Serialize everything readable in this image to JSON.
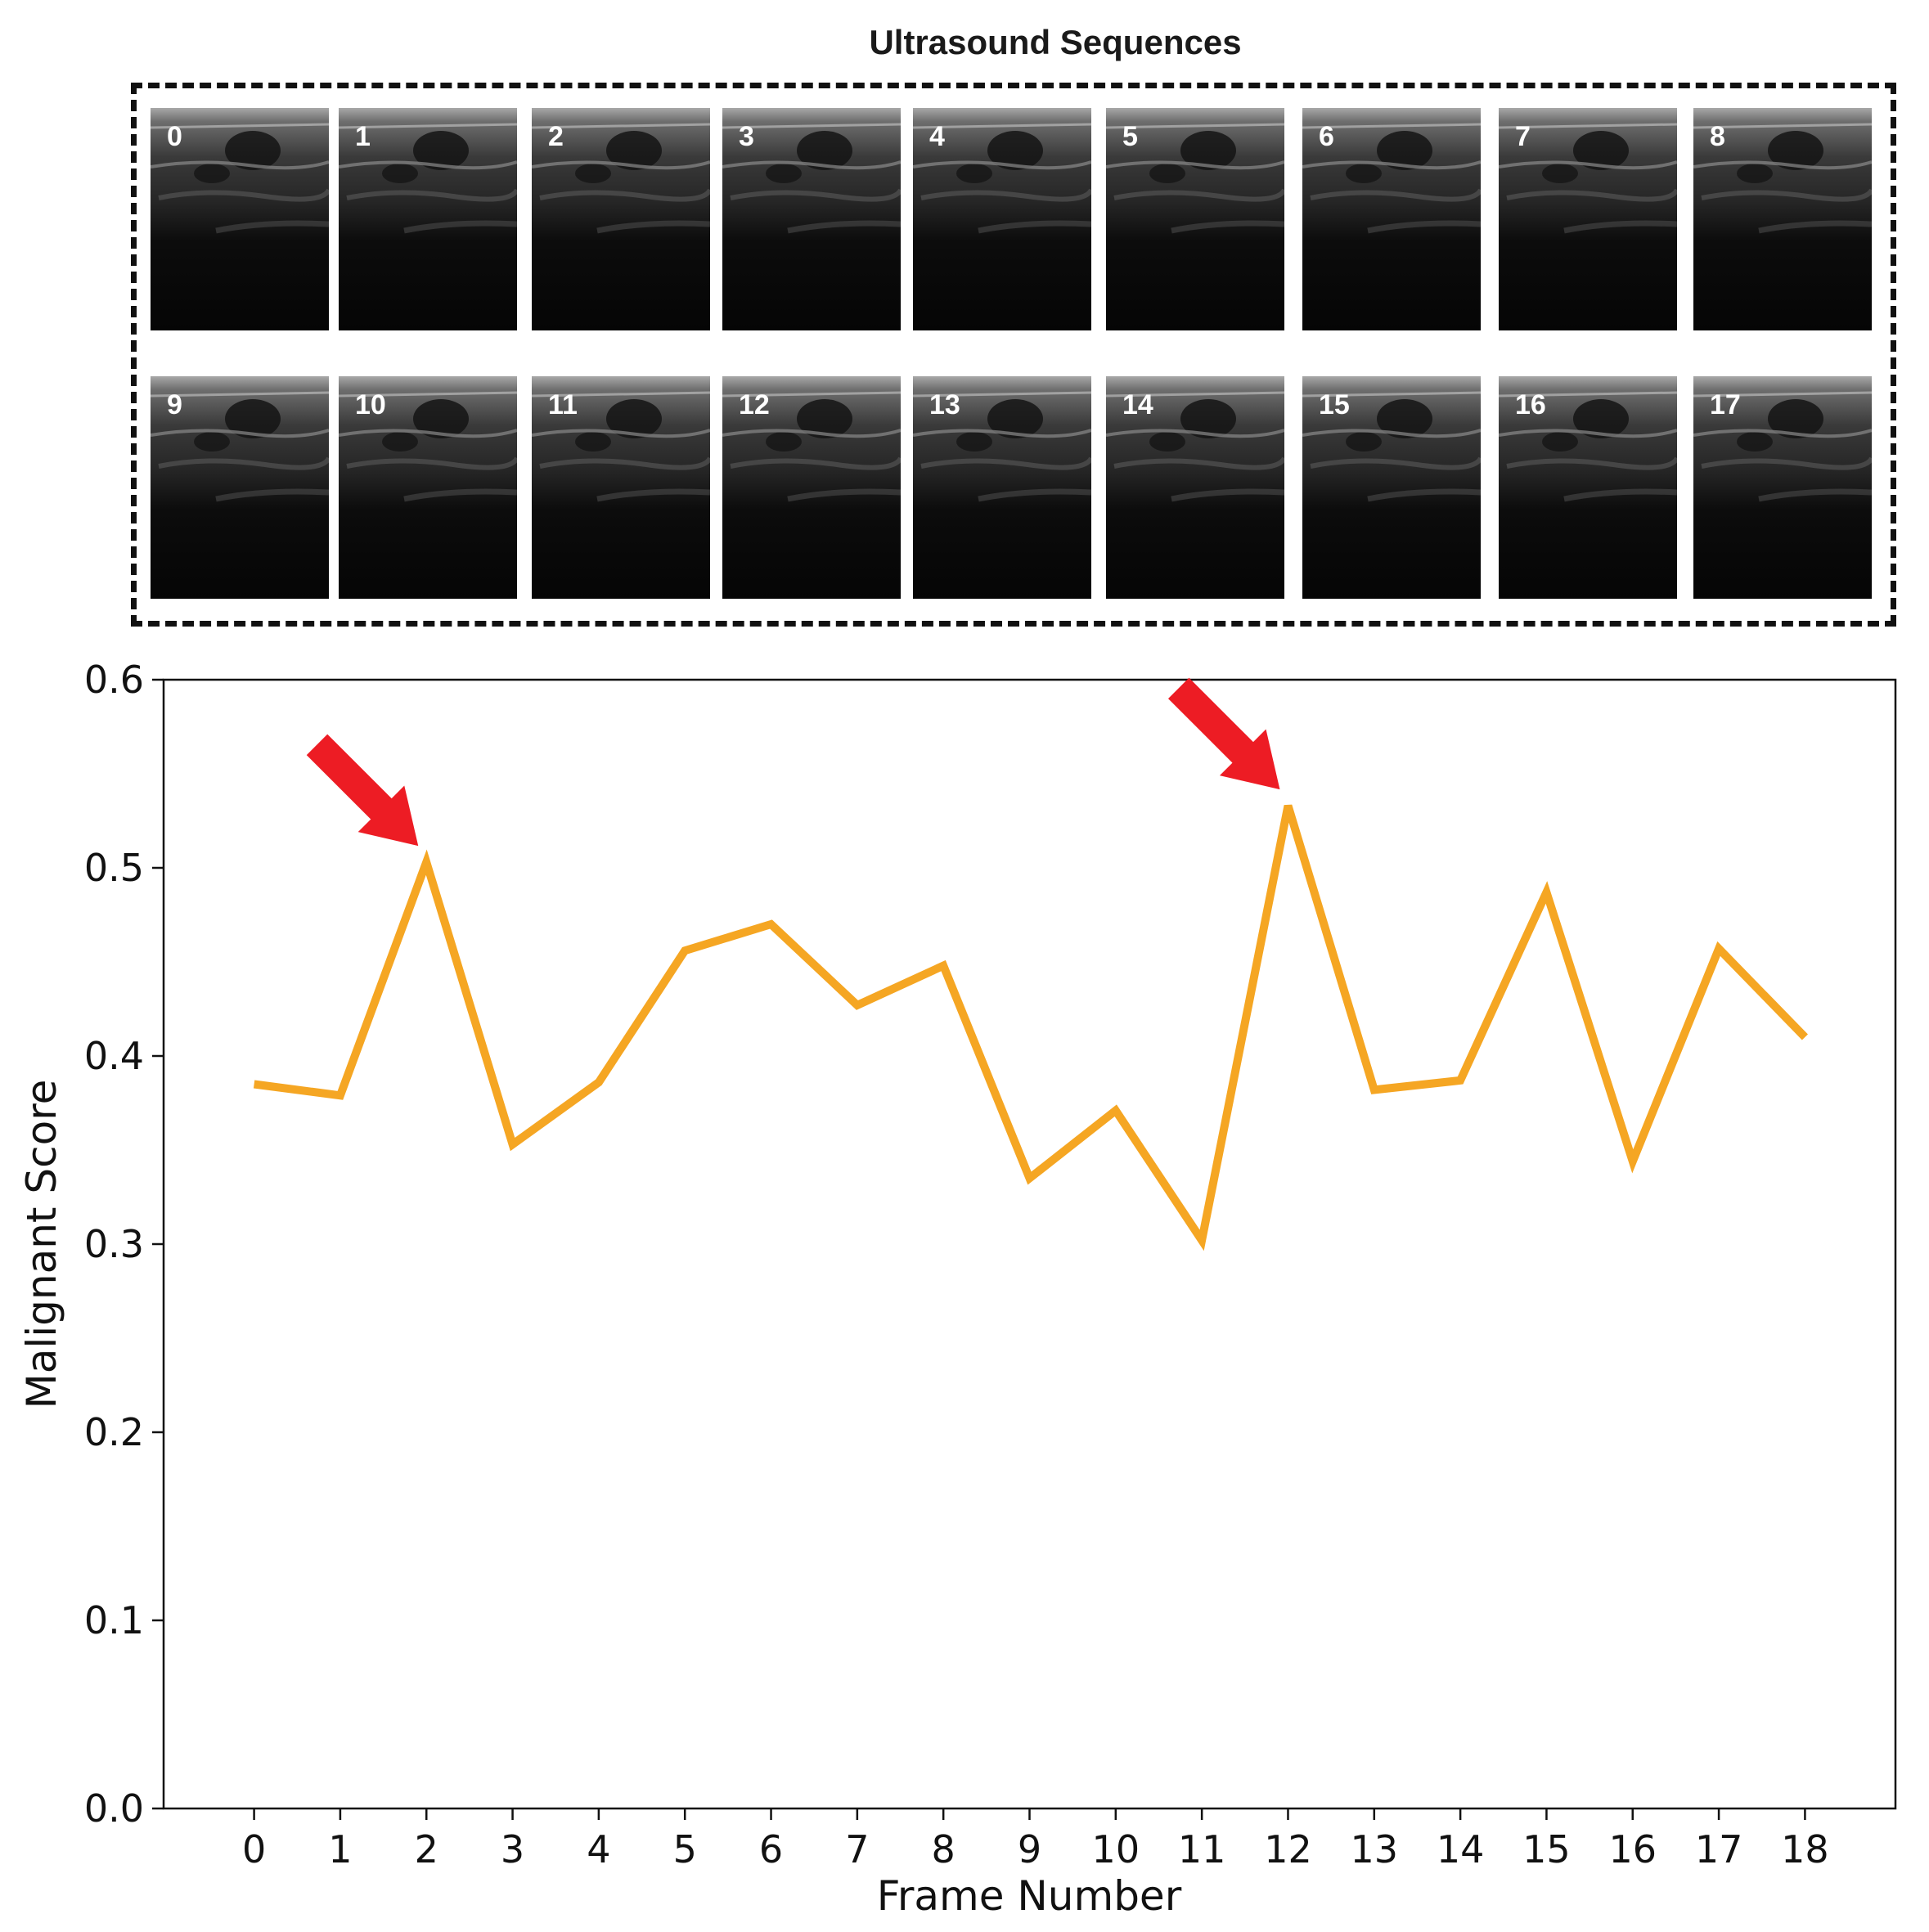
{
  "sequence_panel": {
    "title": "Ultrasound Sequences",
    "frame_labels": [
      "0",
      "1",
      "2",
      "3",
      "4",
      "5",
      "6",
      "7",
      "8",
      "9",
      "10",
      "11",
      "12",
      "13",
      "14",
      "15",
      "16",
      "17"
    ]
  },
  "chart_data": {
    "type": "line",
    "title": "",
    "xlabel": "Frame Number",
    "ylabel": "Malignant Score",
    "x": [
      0,
      1,
      2,
      3,
      4,
      5,
      6,
      7,
      8,
      9,
      10,
      11,
      12,
      13,
      14,
      15,
      16,
      17,
      18
    ],
    "xticks": [
      "0",
      "1",
      "2",
      "3",
      "4",
      "5",
      "6",
      "7",
      "8",
      "9",
      "10",
      "11",
      "12",
      "13",
      "14",
      "15",
      "16",
      "17",
      "18"
    ],
    "yticks": [
      "0.0",
      "0.1",
      "0.2",
      "0.3",
      "0.4",
      "0.5",
      "0.6"
    ],
    "xlim": [
      -1.05,
      19.05
    ],
    "ylim": [
      0,
      0.6
    ],
    "grid": false,
    "series": [
      {
        "values": [
          0.385,
          0.379,
          0.503,
          0.353,
          0.386,
          0.456,
          0.47,
          0.427,
          0.448,
          0.335,
          0.371,
          0.302,
          0.533,
          0.382,
          0.387,
          0.487,
          0.344,
          0.457,
          0.41
        ],
        "color": "#f5a623"
      }
    ],
    "annotations": [
      {
        "type": "arrow",
        "target_x": 2,
        "target_y": 0.503,
        "color": "#ed1c24"
      },
      {
        "type": "arrow",
        "target_x": 12,
        "target_y": 0.533,
        "color": "#ed1c24"
      }
    ]
  }
}
